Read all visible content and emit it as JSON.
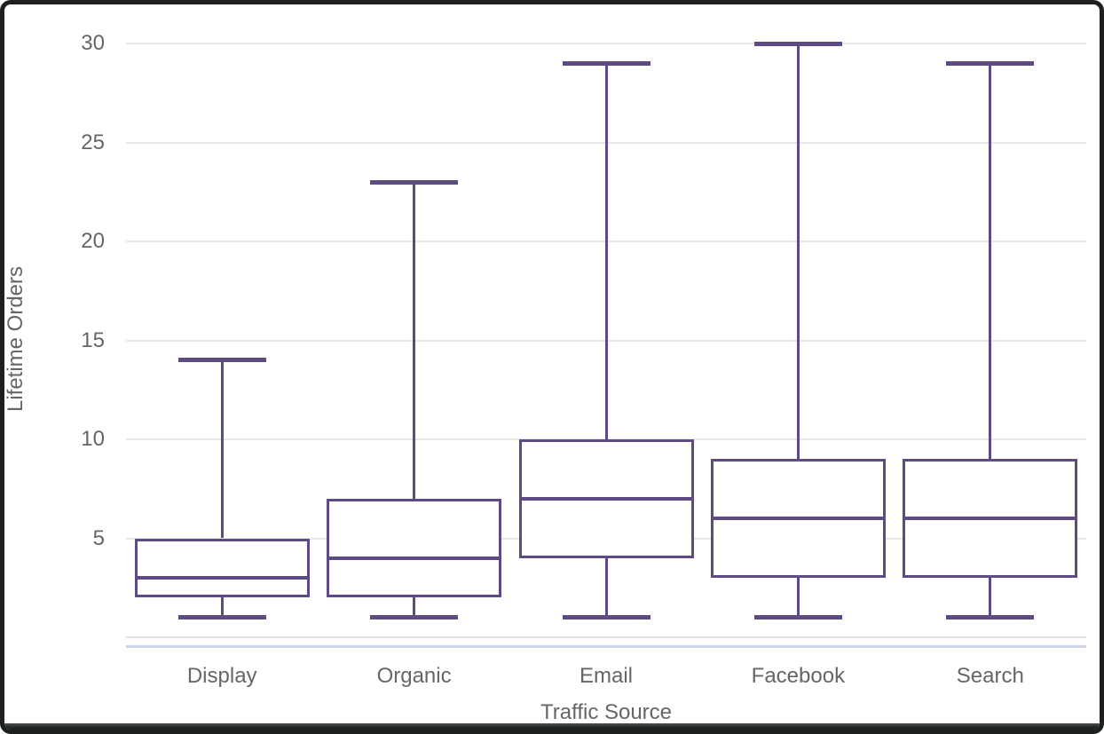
{
  "window": {
    "background": "#ffffff",
    "border_color": "#1d201e"
  },
  "chart_data": {
    "type": "box",
    "title": "",
    "xlabel": "Traffic Source",
    "ylabel": "Lifetime Orders",
    "categories": [
      "Display",
      "Organic",
      "Email",
      "Facebook",
      "Search"
    ],
    "series": [
      {
        "name": "Display",
        "min": 1,
        "q1": 2,
        "median": 3,
        "q3": 5,
        "max": 14
      },
      {
        "name": "Organic",
        "min": 1,
        "q1": 2,
        "median": 4,
        "q3": 7,
        "max": 23
      },
      {
        "name": "Email",
        "min": 1,
        "q1": 4,
        "median": 7,
        "q3": 10,
        "max": 29
      },
      {
        "name": "Facebook",
        "min": 1,
        "q1": 3,
        "median": 6,
        "q3": 9,
        "max": 30
      },
      {
        "name": "Search",
        "min": 1,
        "q1": 3,
        "median": 6,
        "q3": 9,
        "max": 29
      }
    ],
    "yticks": [
      5,
      10,
      15,
      20,
      25,
      30
    ],
    "ylim": [
      0,
      31
    ],
    "grid": true,
    "legend": "none",
    "colors": {
      "box_stroke": "#5e4b84",
      "gridline": "#e8e8e8",
      "axis_line": "#e2e2e2",
      "axis_accent_line": "#c9d4ea",
      "text": "#666666"
    }
  }
}
